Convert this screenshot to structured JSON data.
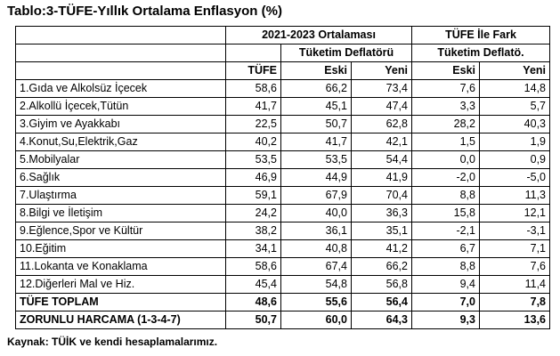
{
  "title": "Tablo:3-TÜFE-Yıllık Ortalama Enflasyon  (%)",
  "header": {
    "group1": "2021-2023 Ortalaması",
    "group2": "TÜFE İle Fark",
    "sub1": "Tüketim Deflatörü",
    "sub2": "Tüketim Deflatö.",
    "tufe": "TÜFE",
    "eski": "Eski",
    "yeni": "Yeni",
    "fark_eski": "Eski",
    "fark_yeni": "Yeni"
  },
  "rows": [
    {
      "label": "1.Gıda ve Alkolsüz İçecek",
      "tufe": "58,6",
      "eski": "66,2",
      "yeni": "73,4",
      "fark_eski": "7,6",
      "fark_yeni": "14,8"
    },
    {
      "label": "2.Alkollü İçecek,Tütün",
      "tufe": "41,7",
      "eski": "45,1",
      "yeni": "47,4",
      "fark_eski": "3,3",
      "fark_yeni": "5,7"
    },
    {
      "label": "3.Giyim ve Ayakkabı",
      "tufe": "22,5",
      "eski": "50,7",
      "yeni": "62,8",
      "fark_eski": "28,2",
      "fark_yeni": "40,3"
    },
    {
      "label": "4.Konut,Su,Elektrik,Gaz",
      "tufe": "40,2",
      "eski": "41,7",
      "yeni": "42,1",
      "fark_eski": "1,5",
      "fark_yeni": "1,9"
    },
    {
      "label": "5.Mobilyalar",
      "tufe": "53,5",
      "eski": "53,5",
      "yeni": "54,4",
      "fark_eski": "0,0",
      "fark_yeni": "0,9"
    },
    {
      "label": "6.Sağlık",
      "tufe": "46,9",
      "eski": "44,9",
      "yeni": "41,9",
      "fark_eski": "-2,0",
      "fark_yeni": "-5,0"
    },
    {
      "label": "7.Ulaştırma",
      "tufe": "59,1",
      "eski": "67,9",
      "yeni": "70,4",
      "fark_eski": "8,8",
      "fark_yeni": "11,3"
    },
    {
      "label": "8.Bilgi ve İletişim",
      "tufe": "24,2",
      "eski": "40,0",
      "yeni": "36,3",
      "fark_eski": "15,8",
      "fark_yeni": "12,1"
    },
    {
      "label": "9.Eğlence,Spor ve Kültür",
      "tufe": "38,2",
      "eski": "36,1",
      "yeni": "35,1",
      "fark_eski": "-2,1",
      "fark_yeni": "-3,1"
    },
    {
      "label": "10.Eğitim",
      "tufe": "34,1",
      "eski": "40,8",
      "yeni": "41,2",
      "fark_eski": "6,7",
      "fark_yeni": "7,1"
    },
    {
      "label": "11.Lokanta ve Konaklama",
      "tufe": "58,6",
      "eski": "67,4",
      "yeni": "66,2",
      "fark_eski": "8,8",
      "fark_yeni": "7,6"
    },
    {
      "label": "12.Diğerleri Mal ve Hiz.",
      "tufe": "45,4",
      "eski": "54,8",
      "yeni": "56,8",
      "fark_eski": "9,4",
      "fark_yeni": "11,4"
    }
  ],
  "totals": [
    {
      "label": "TÜFE TOPLAM",
      "tufe": "48,6",
      "eski": "55,6",
      "yeni": "56,4",
      "fark_eski": "7,0",
      "fark_yeni": "7,8"
    },
    {
      "label": "ZORUNLU HARCAMA (1-3-4-7)",
      "tufe": "50,7",
      "eski": "60,0",
      "yeni": "64,3",
      "fark_eski": "9,3",
      "fark_yeni": "13,6"
    }
  ],
  "source": "Kaynak: TÜİK ve kendi hesaplamalarımız."
}
